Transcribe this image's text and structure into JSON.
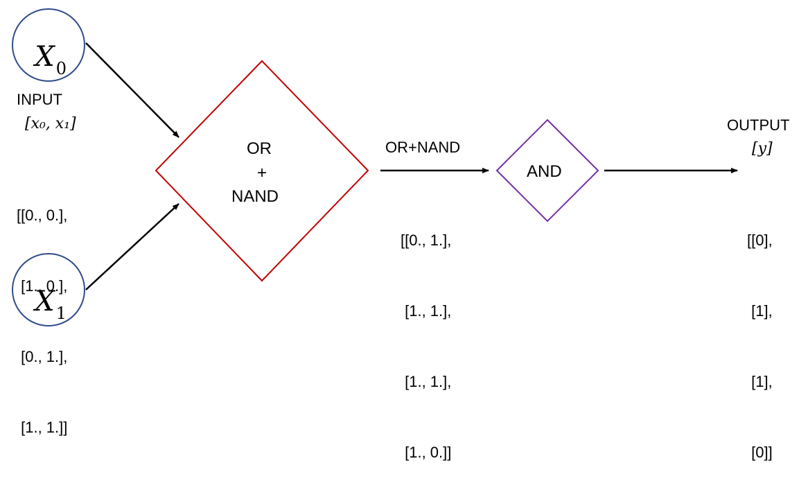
{
  "nodes": {
    "x0": {
      "var": "X",
      "sub": "0"
    },
    "x1": {
      "var": "X",
      "sub": "1"
    }
  },
  "input": {
    "title": "INPUT",
    "vector": "[x₀, x₁]",
    "matrix": [
      "[[0., 0.],",
      " [1., 0.],",
      " [0., 1.],",
      " [1., 1.]]"
    ]
  },
  "gate1": {
    "line1": "OR",
    "line2": "+",
    "line3": "NAND"
  },
  "mid": {
    "title": "OR+NAND",
    "matrix": [
      "[[0., 1.],",
      " [1., 1.],",
      " [1., 1.],",
      " [1., 0.]]"
    ]
  },
  "gate2": {
    "label": "AND"
  },
  "output": {
    "title": "OUTPUT",
    "vector": "[y]",
    "matrix": [
      "[[0],",
      " [1],",
      " [1],",
      " [0]]"
    ]
  },
  "colors": {
    "circle": "#2f4b8a",
    "gate1": "#c00000",
    "gate2": "#7030a0",
    "arrow": "#000000"
  }
}
